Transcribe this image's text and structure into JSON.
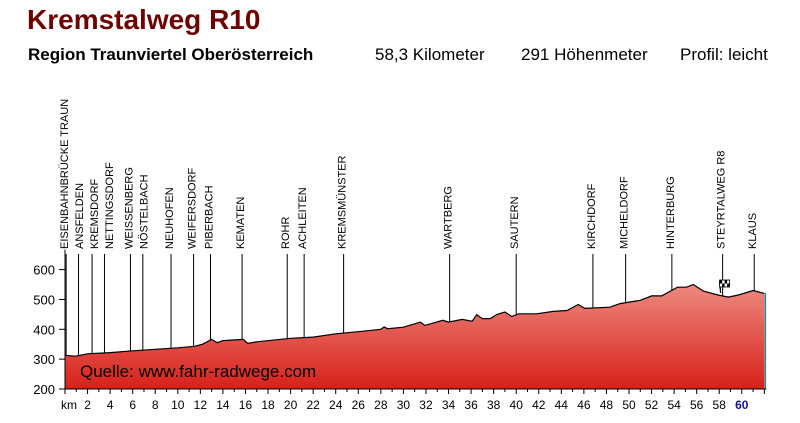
{
  "header": {
    "title": "Kremstalweg R10",
    "region": "Region Traunviertel Oberösterreich",
    "distance": "58,3 Kilometer",
    "elevation_gain": "291 Höhenmeter",
    "profile": "Profil: leicht"
  },
  "chart_data": {
    "type": "area",
    "title": "Kremstalweg R10",
    "xlabel": "km",
    "ylabel": "",
    "xlim": [
      0,
      62
    ],
    "ylim": [
      200,
      650
    ],
    "yticks": [
      200,
      300,
      400,
      500,
      600
    ],
    "xticks": [
      2,
      4,
      6,
      8,
      10,
      12,
      14,
      16,
      18,
      20,
      22,
      24,
      26,
      28,
      30,
      32,
      34,
      36,
      38,
      40,
      42,
      44,
      46,
      48,
      50,
      52,
      54,
      56,
      58,
      60
    ],
    "highlight_xtick": 60,
    "grid": false,
    "annotation": "Quelle: www.fahr-radwege.com",
    "colors": {
      "fill_top": "#ec8a80",
      "fill_bottom": "#d8201a",
      "outline": "#000000",
      "highlight_tick": "#1010a0"
    },
    "profile": {
      "x": [
        0,
        0.9,
        2,
        4,
        6,
        8,
        10,
        11.5,
        12.2,
        13,
        13.5,
        14,
        15.8,
        16.2,
        17,
        20,
        22,
        24,
        26,
        28,
        28.3,
        28.6,
        30,
        31.5,
        31.9,
        33.5,
        34,
        35.2,
        36.1,
        36.5,
        37,
        37.7,
        38.3,
        39,
        39.6,
        40.2,
        41.8,
        43.3,
        44.5,
        45.5,
        46.1,
        48.3,
        49.2,
        51,
        52,
        52.9,
        54.3,
        55.1,
        55.7,
        56.6,
        57.9,
        58.8,
        59.7,
        61,
        61.9,
        62
      ],
      "y": [
        313,
        310,
        318,
        322,
        328,
        333,
        338,
        343,
        350,
        366,
        355,
        362,
        366,
        353,
        358,
        370,
        374,
        385,
        392,
        400,
        408,
        402,
        407,
        424,
        413,
        430,
        424,
        433,
        427,
        449,
        436,
        436,
        450,
        458,
        443,
        452,
        452,
        460,
        463,
        483,
        470,
        474,
        486,
        497,
        512,
        512,
        541,
        541,
        550,
        528,
        515,
        508,
        515,
        530,
        521,
        521
      ]
    },
    "places": [
      {
        "name": "EISENBAHNBRÜCKE TRAUN",
        "km": 0.1
      },
      {
        "name": "ANSFELDEN",
        "km": 1.2
      },
      {
        "name": "KREMSDORF",
        "km": 2.4
      },
      {
        "name": "NETTINGSDORF",
        "km": 3.5
      },
      {
        "name": "WEISSENBERG",
        "km": 5.8
      },
      {
        "name": "NÖSTELBACH",
        "km": 6.9
      },
      {
        "name": "NEUHOFEN",
        "km": 9.4
      },
      {
        "name": "WEIFERSDORF",
        "km": 11.4
      },
      {
        "name": "PIBERBACH",
        "km": 12.9
      },
      {
        "name": "KEMATEN",
        "km": 15.7
      },
      {
        "name": "ROHR",
        "km": 19.7
      },
      {
        "name": "ACHLEITEN",
        "km": 21.2
      },
      {
        "name": "KREMSMÜNSTER",
        "km": 24.7
      },
      {
        "name": "WARTBERG",
        "km": 34.1
      },
      {
        "name": "SAUTERN",
        "km": 40.0
      },
      {
        "name": "KIRCHDORF",
        "km": 46.8
      },
      {
        "name": "MICHELDORF",
        "km": 49.7
      },
      {
        "name": "HINTERBURG",
        "km": 53.8
      },
      {
        "name": "STEYRTALWEG R8",
        "km": 58.3
      },
      {
        "name": "KLAUS",
        "km": 61.1
      }
    ],
    "finish_flag_km": 58.3,
    "finish_icon": "checkered-flag-icon"
  }
}
